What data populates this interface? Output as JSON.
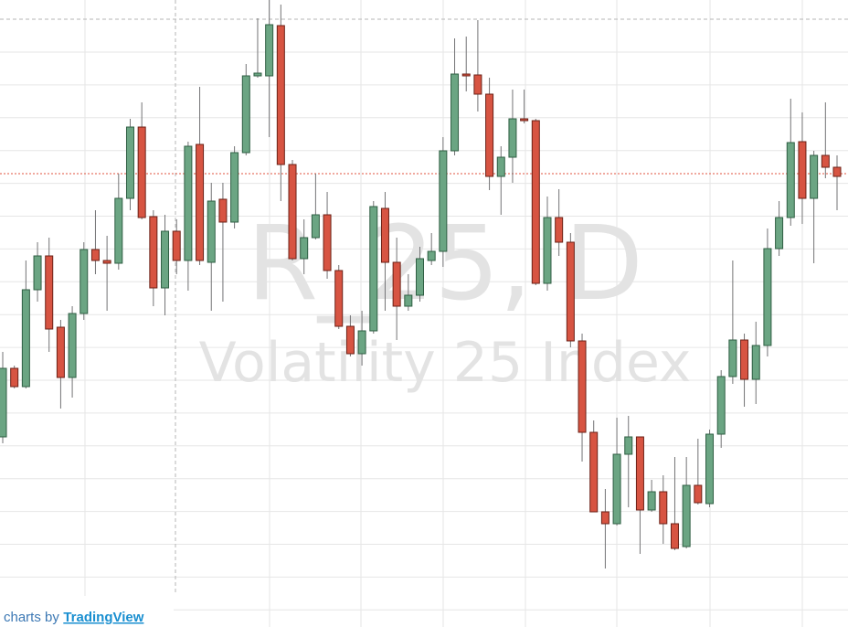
{
  "chart_data": {
    "type": "candlestick",
    "watermark": "R_25, D",
    "watermark_subtitle": "Volatility 25 Index",
    "footer_prefix": "charts by",
    "footer_brand": "TradingView",
    "ylim": [
      0,
      686
    ],
    "grid": true,
    "up_color": "#6ba583",
    "down_color": "#d75442",
    "wick_color": "#737375",
    "price_line": 496,
    "price_line_color": "#e0533f",
    "open": [
      208,
      283,
      263,
      369,
      406,
      328,
      273,
      343,
      413,
      401,
      398,
      469,
      547,
      449,
      371,
      433,
      401,
      528,
      399,
      468,
      443,
      519,
      603,
      603,
      658,
      506,
      403,
      426,
      451,
      390,
      329,
      299,
      324,
      458,
      399,
      351,
      363,
      401,
      411,
      521,
      605,
      604,
      583,
      493,
      514,
      556,
      554,
      376,
      448,
      421,
      313,
      213,
      126,
      113,
      189,
      208,
      128,
      148,
      113,
      88,
      155,
      135,
      211,
      274,
      314,
      271,
      308,
      414,
      448,
      531,
      469,
      516,
      503
    ],
    "high": [
      301,
      286,
      401,
      421,
      426,
      336,
      351,
      421,
      456,
      428,
      496,
      556,
      574,
      456,
      451,
      446,
      531,
      591,
      486,
      486,
      526,
      616,
      666,
      686,
      681,
      511,
      446,
      496,
      476,
      396,
      341,
      346,
      466,
      476,
      426,
      386,
      416,
      431,
      536,
      644,
      646,
      664,
      601,
      526,
      588,
      588,
      556,
      471,
      479,
      431,
      321,
      226,
      151,
      229,
      231,
      208,
      161,
      166,
      186,
      186,
      206,
      216,
      281,
      401,
      321,
      334,
      436,
      466,
      578,
      563,
      521,
      574,
      516
    ],
    "low": [
      201,
      261,
      261,
      356,
      301,
      239,
      251,
      336,
      386,
      346,
      391,
      456,
      446,
      351,
      341,
      386,
      368,
      396,
      346,
      356,
      436,
      516,
      601,
      536,
      466,
      401,
      386,
      424,
      381,
      326,
      296,
      286,
      321,
      346,
      314,
      346,
      356,
      396,
      394,
      516,
      586,
      564,
      478,
      451,
      486,
      551,
      374,
      368,
      406,
      306,
      181,
      126,
      64,
      111,
      131,
      80,
      126,
      91,
      84,
      86,
      134,
      131,
      196,
      266,
      241,
      244,
      296,
      406,
      439,
      441,
      398,
      491,
      456
    ],
    "close": [
      283,
      263,
      369,
      406,
      326,
      273,
      343,
      413,
      401,
      398,
      469,
      547,
      448,
      371,
      433,
      401,
      526,
      401,
      466,
      443,
      519,
      603,
      606,
      659,
      506,
      403,
      426,
      451,
      390,
      329,
      299,
      324,
      460,
      399,
      351,
      363,
      403,
      411,
      521,
      605,
      603,
      583,
      493,
      514,
      556,
      554,
      376,
      448,
      421,
      313,
      213,
      126,
      113,
      189,
      208,
      128,
      148,
      113,
      86,
      155,
      136,
      211,
      274,
      314,
      271,
      308,
      414,
      448,
      530,
      469,
      516,
      503,
      493
    ]
  }
}
